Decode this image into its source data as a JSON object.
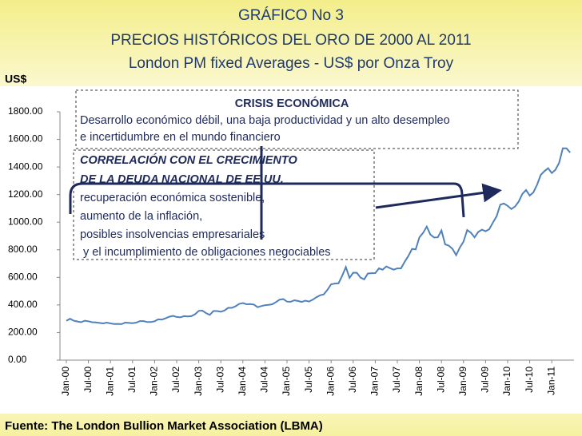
{
  "chart_data": {
    "type": "line",
    "title": [
      "GRÁFICO No 3",
      "PRECIOS HISTÓRICOS DEL ORO DE 2000 AL 2011",
      "London PM fixed Averages - US$ por Onza Troy"
    ],
    "y_label": "US$",
    "source": "Fuente: The London Bullion Market Association (LBMA)",
    "annotations": [
      "CRISIS ECONÓMICA",
      "Desarrollo económico débil, una baja productividad y un alto desempleo",
      "e incertidumbre en el mundo financiero",
      "CORRELACIÓN CON EL CRECIMIENTO",
      "DE LA DEUDA NACIONAL DE EE.UU.",
      "recuperación económica sostenible,",
      "aumento de la inflación,",
      "posibles insolvencias empresariales",
      " y el incumplimiento de obligaciones negociables"
    ],
    "categories": [
      "Jan-00",
      null,
      null,
      null,
      null,
      null,
      "Jul-00",
      null,
      null,
      null,
      null,
      null,
      "Jan-01",
      null,
      null,
      null,
      null,
      null,
      "Jul-01",
      null,
      null,
      null,
      null,
      null,
      "Jan-02",
      null,
      null,
      null,
      null,
      null,
      "Jul-02",
      null,
      null,
      null,
      null,
      null,
      "Jan-03",
      null,
      null,
      null,
      null,
      null,
      "Jul-03",
      null,
      null,
      null,
      null,
      null,
      "Jan-04",
      null,
      null,
      null,
      null,
      null,
      "Jul-04",
      null,
      null,
      null,
      null,
      null,
      "Jan-05",
      null,
      null,
      null,
      null,
      null,
      "Jul-05",
      null,
      null,
      null,
      null,
      null,
      "Jan-06",
      null,
      null,
      null,
      null,
      null,
      "Jul-06",
      null,
      null,
      null,
      null,
      null,
      "Jan-07",
      null,
      null,
      null,
      null,
      null,
      "Jul-07",
      null,
      null,
      null,
      null,
      null,
      "Jan-08",
      null,
      null,
      null,
      null,
      null,
      "Jul-08",
      null,
      null,
      null,
      null,
      null,
      "Jan-09",
      null,
      null,
      null,
      null,
      null,
      "Jul-09",
      null,
      null,
      null,
      null,
      null,
      "Jan-10",
      null,
      null,
      null,
      null,
      null,
      "Jul-10",
      null,
      null,
      null,
      null,
      null,
      "Jan-11",
      null,
      null,
      null,
      null,
      null
    ],
    "values": [
      285,
      300,
      286,
      280,
      275,
      286,
      282,
      275,
      274,
      270,
      266,
      272,
      266,
      262,
      263,
      261,
      272,
      270,
      268,
      272,
      283,
      283,
      276,
      276,
      282,
      296,
      294,
      303,
      315,
      321,
      313,
      310,
      319,
      317,
      319,
      333,
      357,
      359,
      341,
      328,
      356,
      356,
      351,
      360,
      379,
      379,
      390,
      408,
      414,
      405,
      407,
      403,
      384,
      392,
      398,
      401,
      405,
      421,
      439,
      442,
      424,
      423,
      434,
      429,
      422,
      431,
      425,
      438,
      456,
      470,
      477,
      510,
      550,
      555,
      557,
      611,
      675,
      596,
      634,
      633,
      598,
      586,
      628,
      630,
      631,
      665,
      656,
      679,
      667,
      656,
      665,
      665,
      713,
      755,
      806,
      803,
      890,
      922,
      968,
      910,
      889,
      890,
      940,
      839,
      830,
      807,
      761,
      816,
      859,
      943,
      924,
      890,
      929,
      946,
      934,
      949,
      997,
      1043,
      1127,
      1135,
      1118,
      1095,
      1113,
      1149,
      1205,
      1233,
      1193,
      1216,
      1271,
      1342,
      1370,
      1391,
      1356,
      1380,
      1430,
      1535,
      1535,
      1505
    ],
    "color": "#4f81bd",
    "ylim": [
      0,
      1800
    ],
    "yticks": [
      {
        "value": 0,
        "label": "0.00"
      },
      {
        "value": 200,
        "label": "200.00"
      },
      {
        "value": 400,
        "label": "400.00"
      },
      {
        "value": 600,
        "label": "600.00"
      },
      {
        "value": 800,
        "label": "800.00"
      },
      {
        "value": 1000,
        "label": "1000.00"
      },
      {
        "value": 1200,
        "label": "1200.00"
      },
      {
        "value": 1400,
        "label": "1400.00"
      },
      {
        "value": 1600,
        "label": "1600.00"
      },
      {
        "value": 1800,
        "label": "1800.00"
      }
    ],
    "grid": false
  }
}
